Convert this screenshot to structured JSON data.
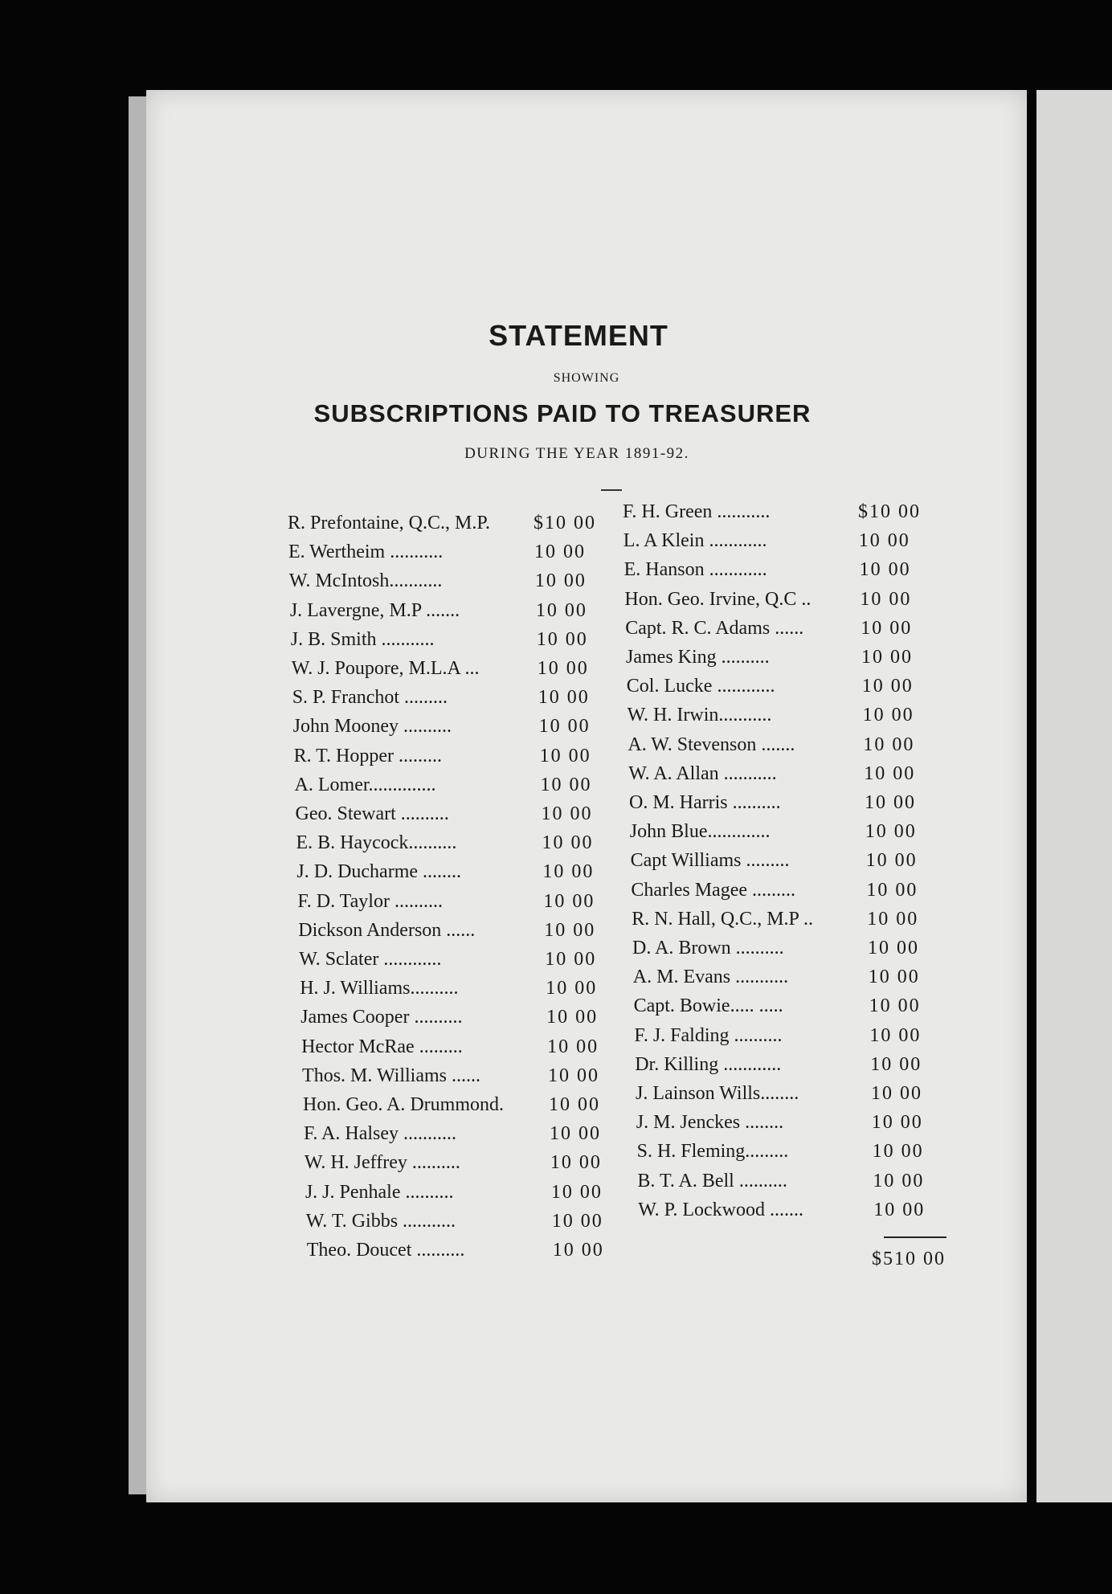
{
  "heading": {
    "title": "STATEMENT",
    "showing": "SHOWING",
    "subtitle": "SUBSCRIPTIONS PAID TO TREASURER",
    "period": "DURING THE YEAR 1891-92."
  },
  "left_column": [
    {
      "name": "R. Prefontaine, Q.C., M.P.",
      "amount": "$10 00"
    },
    {
      "name": "E. Wertheim ...........",
      "amount": "10 00"
    },
    {
      "name": "W. McIntosh...........",
      "amount": "10 00"
    },
    {
      "name": "J. Lavergne, M.P .......",
      "amount": "10 00"
    },
    {
      "name": "J. B. Smith ...........",
      "amount": "10 00"
    },
    {
      "name": "W. J. Poupore, M.L.A ...",
      "amount": "10 00"
    },
    {
      "name": "S. P. Franchot .........",
      "amount": "10 00"
    },
    {
      "name": "John Mooney ..........",
      "amount": "10 00"
    },
    {
      "name": "R. T. Hopper .........",
      "amount": "10 00"
    },
    {
      "name": "A. Lomer..............",
      "amount": "10 00"
    },
    {
      "name": "Geo. Stewart ..........",
      "amount": "10 00"
    },
    {
      "name": "E. B. Haycock..........",
      "amount": "10 00"
    },
    {
      "name": "J. D. Ducharme ........",
      "amount": "10 00"
    },
    {
      "name": "F. D. Taylor ..........",
      "amount": "10 00"
    },
    {
      "name": "Dickson Anderson ......",
      "amount": "10 00"
    },
    {
      "name": "W. Sclater ............",
      "amount": "10 00"
    },
    {
      "name": "H. J. Williams..........",
      "amount": "10 00"
    },
    {
      "name": "James Cooper ..........",
      "amount": "10 00"
    },
    {
      "name": "Hector McRae .........",
      "amount": "10 00"
    },
    {
      "name": "Thos. M. Williams ......",
      "amount": "10 00"
    },
    {
      "name": "Hon. Geo. A. Drummond.",
      "amount": "10 00"
    },
    {
      "name": "F. A. Halsey ...........",
      "amount": "10 00"
    },
    {
      "name": "W. H. Jeffrey ..........",
      "amount": "10 00"
    },
    {
      "name": "J. J. Penhale ..........",
      "amount": "10 00"
    },
    {
      "name": "W. T. Gibbs ...........",
      "amount": "10 00"
    },
    {
      "name": "Theo. Doucet ..........",
      "amount": "10 00"
    }
  ],
  "right_column": [
    {
      "name": "F. H. Green ...........",
      "amount": "$10 00"
    },
    {
      "name": "L. A Klein ............",
      "amount": "10 00"
    },
    {
      "name": "E. Hanson ............",
      "amount": "10 00"
    },
    {
      "name": "Hon. Geo. Irvine, Q.C ..",
      "amount": "10 00"
    },
    {
      "name": "Capt. R. C. Adams ......",
      "amount": "10 00"
    },
    {
      "name": "James King ..........",
      "amount": "10 00"
    },
    {
      "name": "Col. Lucke ............",
      "amount": "10 00"
    },
    {
      "name": "W. H. Irwin...........",
      "amount": "10 00"
    },
    {
      "name": "A. W. Stevenson .......",
      "amount": "10 00"
    },
    {
      "name": "W. A. Allan ...........",
      "amount": "10 00"
    },
    {
      "name": "O. M. Harris ..........",
      "amount": "10 00"
    },
    {
      "name": "John Blue.............",
      "amount": "10 00"
    },
    {
      "name": "Capt Williams .........",
      "amount": "10 00"
    },
    {
      "name": "Charles Magee .........",
      "amount": "10 00"
    },
    {
      "name": "R. N. Hall, Q.C., M.P ..",
      "amount": "10 00"
    },
    {
      "name": "D. A. Brown ..........",
      "amount": "10 00"
    },
    {
      "name": "A. M. Evans ...........",
      "amount": "10 00"
    },
    {
      "name": "Capt. Bowie..... .....",
      "amount": "10 00"
    },
    {
      "name": "F. J. Falding ..........",
      "amount": "10 00"
    },
    {
      "name": "Dr. Killing ............",
      "amount": "10 00"
    },
    {
      "name": "J. Lainson Wills........",
      "amount": "10 00"
    },
    {
      "name": "J. M. Jenckes ........",
      "amount": "10 00"
    },
    {
      "name": "S. H. Fleming.........",
      "amount": "10 00"
    },
    {
      "name": "B. T. A. Bell ..........",
      "amount": "10 00"
    },
    {
      "name": "W. P. Lockwood .......",
      "amount": "10 00"
    }
  ],
  "total": "$510 00"
}
